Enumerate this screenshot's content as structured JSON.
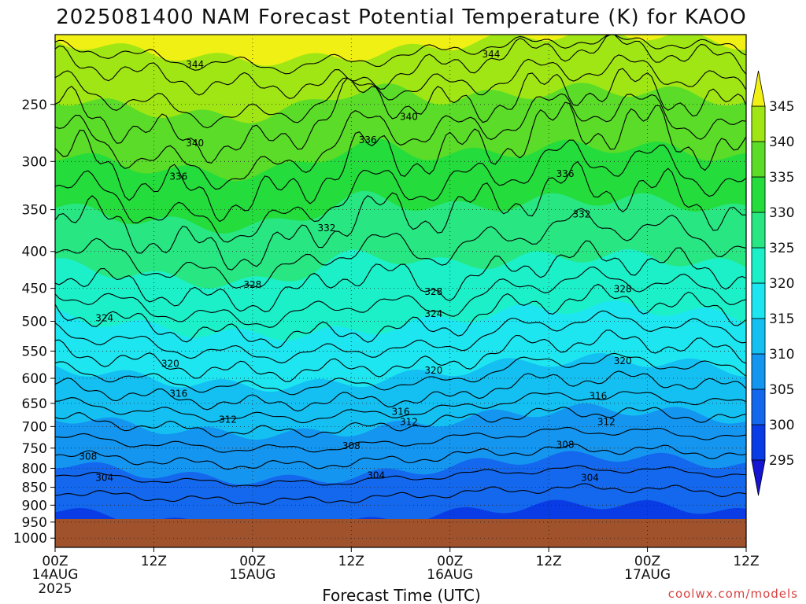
{
  "title": "2025081400 NAM Forecast Potential Temperature (K) for KAOO",
  "credit": "coolwx.com/models",
  "chart_data": {
    "type": "heatmap",
    "title": "2025081400 NAM Forecast Potential Temperature (K) for KAOO",
    "xlabel": "Forecast Time (UTC)",
    "ylabel": "",
    "x_ticks": [
      {
        "hours": 0,
        "label": "00Z",
        "date": "14AUG",
        "year": "2025"
      },
      {
        "hours": 12,
        "label": "12Z",
        "date": "",
        "year": ""
      },
      {
        "hours": 24,
        "label": "00Z",
        "date": "15AUG",
        "year": ""
      },
      {
        "hours": 36,
        "label": "12Z",
        "date": "",
        "year": ""
      },
      {
        "hours": 48,
        "label": "00Z",
        "date": "16AUG",
        "year": ""
      },
      {
        "hours": 60,
        "label": "12Z",
        "date": "",
        "year": ""
      },
      {
        "hours": 72,
        "label": "00Z",
        "date": "17AUG",
        "year": ""
      },
      {
        "hours": 84,
        "label": "12Z",
        "date": "",
        "year": ""
      }
    ],
    "y_ticks": [
      250,
      300,
      350,
      400,
      450,
      500,
      550,
      600,
      650,
      700,
      750,
      800,
      850,
      900,
      950,
      1000
    ],
    "x_range_hours": [
      0,
      84
    ],
    "y_range_hPa": [
      200,
      1030
    ],
    "y_scale": "log",
    "grid": true,
    "ground_top_hPa": 963,
    "colorbar": {
      "levels": [
        295,
        300,
        305,
        310,
        315,
        320,
        325,
        330,
        335,
        340,
        345
      ],
      "colors": [
        "#1414d2",
        "#0a3ce6",
        "#1468ee",
        "#1496f0",
        "#14c0f2",
        "#1ee6f0",
        "#1cf0c8",
        "#28e682",
        "#24dc3c",
        "#5adc28",
        "#a0e614",
        "#f0f014"
      ]
    },
    "contour_levels": [
      304,
      308,
      312,
      316,
      320,
      324,
      328,
      332,
      336,
      340,
      344
    ],
    "contour_labels": [
      {
        "value": 304,
        "x": 6,
        "p": 825
      },
      {
        "value": 304,
        "x": 39,
        "p": 818
      },
      {
        "value": 304,
        "x": 65,
        "p": 825
      },
      {
        "value": 308,
        "x": 4,
        "p": 770
      },
      {
        "value": 308,
        "x": 36,
        "p": 745
      },
      {
        "value": 308,
        "x": 62,
        "p": 742
      },
      {
        "value": 312,
        "x": 21,
        "p": 685
      },
      {
        "value": 312,
        "x": 43,
        "p": 690
      },
      {
        "value": 312,
        "x": 67,
        "p": 690
      },
      {
        "value": 316,
        "x": 15,
        "p": 630
      },
      {
        "value": 316,
        "x": 42,
        "p": 668
      },
      {
        "value": 316,
        "x": 66,
        "p": 635
      },
      {
        "value": 320,
        "x": 14,
        "p": 573
      },
      {
        "value": 320,
        "x": 46,
        "p": 585
      },
      {
        "value": 320,
        "x": 69,
        "p": 568
      },
      {
        "value": 324,
        "x": 6,
        "p": 495
      },
      {
        "value": 324,
        "x": 46,
        "p": 488
      },
      {
        "value": 328,
        "x": 24,
        "p": 445
      },
      {
        "value": 328,
        "x": 46,
        "p": 455
      },
      {
        "value": 328,
        "x": 69,
        "p": 451
      },
      {
        "value": 332,
        "x": 33,
        "p": 371
      },
      {
        "value": 332,
        "x": 64,
        "p": 355
      },
      {
        "value": 336,
        "x": 15,
        "p": 315
      },
      {
        "value": 336,
        "x": 38,
        "p": 280
      },
      {
        "value": 336,
        "x": 62,
        "p": 312
      },
      {
        "value": 340,
        "x": 17,
        "p": 283
      },
      {
        "value": 340,
        "x": 43,
        "p": 260
      },
      {
        "value": 344,
        "x": 17,
        "p": 220
      },
      {
        "value": 344,
        "x": 53,
        "p": 213
      }
    ]
  }
}
